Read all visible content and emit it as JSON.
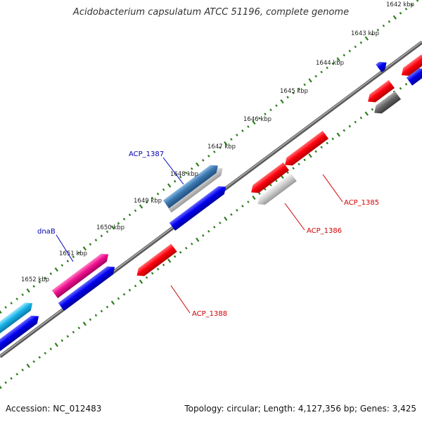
{
  "title": "Acidobacterium capsulatum ATCC 51196, complete genome",
  "accession": "Accession: NC_012483",
  "summary": "Topology: circular; Length: 4,127,356 bp; Genes: 3,425",
  "ruler_labels": [
    "1642 kbp",
    "1643 kbp",
    "1644 kbp",
    "1645 kbp",
    "1646 kbp",
    "1647 kbp",
    "1648 kbp",
    "1649 kbp",
    "1650 kbp",
    "1651 kbp",
    "1652 kbp"
  ],
  "gene_labels": {
    "acp1387": "ACP_1387",
    "dnab": "dnaB",
    "acp1385": "ACP_1385",
    "acp1386": "ACP_1386",
    "acp1388": "ACP_1388"
  },
  "colors": {
    "backbone": "#7a7a7a",
    "ruler": "#2e7d1e",
    "red": "#e8000a",
    "blue": "#0000e0",
    "gray": "#666666",
    "light_gray": "#c8c8c8",
    "steel_blue": "#3a78b0",
    "pink": "#e8008a",
    "cyan": "#18b4e8",
    "label_blue": "#0000b0",
    "label_red": "#d00000"
  }
}
